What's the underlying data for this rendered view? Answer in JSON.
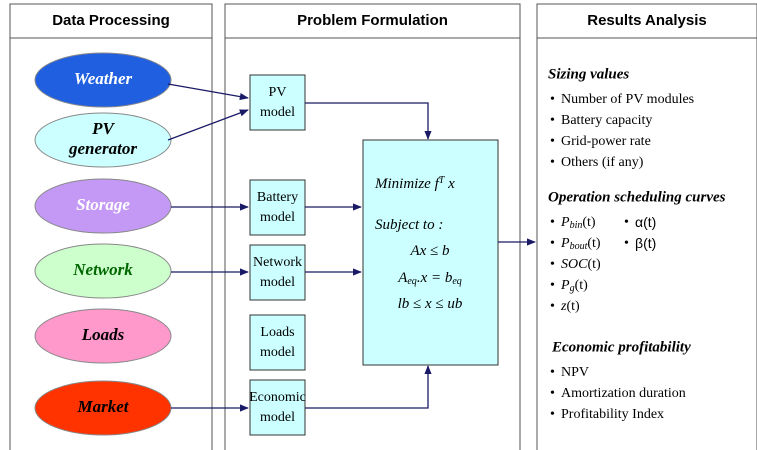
{
  "panels": [
    {
      "title": "Data Processing"
    },
    {
      "title": "Problem Formulation"
    },
    {
      "title": "Results Analysis"
    }
  ],
  "sources": [
    {
      "lines": [
        "Weather"
      ],
      "color": "#1f5fe0",
      "text_color": "#ffffff"
    },
    {
      "lines": [
        "PV",
        "generator"
      ],
      "color": "#ccffff",
      "text_color": "#000000"
    },
    {
      "lines": [
        "Storage"
      ],
      "color": "#c399f5",
      "text_color": "#ffffff"
    },
    {
      "lines": [
        "Network"
      ],
      "color": "#ccffcc",
      "text_color": "#006600"
    },
    {
      "lines": [
        "Loads"
      ],
      "color": "#ff99cc",
      "text_color": "#000000"
    },
    {
      "lines": [
        "Market"
      ],
      "color": "#ff3300",
      "text_color": "#000000"
    }
  ],
  "models": [
    {
      "lines": [
        "PV",
        "model"
      ]
    },
    {
      "lines": [
        "Battery",
        "model"
      ]
    },
    {
      "lines": [
        "Network",
        "model"
      ]
    },
    {
      "lines": [
        "Loads",
        "model"
      ]
    },
    {
      "lines": [
        "Economic",
        "model"
      ]
    }
  ],
  "optimization": {
    "objective": [
      {
        "text": "Minimize f"
      },
      {
        "text": "T",
        "style": "sup"
      },
      {
        "text": " x"
      }
    ],
    "subject": [
      {
        "text": "Subject to :"
      }
    ],
    "constraints": [
      [
        {
          "text": "Ax ≤ b"
        }
      ],
      [
        {
          "text": "A"
        },
        {
          "text": "eq",
          "style": "sub"
        },
        {
          "text": ".x = b"
        },
        {
          "text": "eq",
          "style": "sub"
        }
      ],
      [
        {
          "text": "lb ≤ x ≤ ub"
        }
      ]
    ]
  },
  "results": {
    "bullet": "•",
    "sections": [
      {
        "heading": "Sizing values",
        "items": [
          [
            {
              "text": "Number of PV modules"
            }
          ],
          [
            {
              "text": "Battery capacity"
            }
          ],
          [
            {
              "text": "Grid-power rate"
            }
          ],
          [
            {
              "text": "Others (if any)"
            }
          ]
        ],
        "items2": []
      },
      {
        "heading": "Operation scheduling curves",
        "items": [
          [
            {
              "text": "P",
              "style": "it"
            },
            {
              "text": "bin",
              "style": "itsub"
            },
            {
              "text": "(t)"
            }
          ],
          [
            {
              "text": "P",
              "style": "it"
            },
            {
              "text": "bout",
              "style": "itsub"
            },
            {
              "text": "(t)"
            }
          ],
          [
            {
              "text": "SOC",
              "style": "it"
            },
            {
              "text": "(t)"
            }
          ],
          [
            {
              "text": "P",
              "style": "it"
            },
            {
              "text": "g",
              "style": "itsub"
            },
            {
              "text": "(t)"
            }
          ],
          [
            {
              "text": "z",
              "style": "it"
            },
            {
              "text": "(t)"
            }
          ]
        ],
        "items2": [
          [
            {
              "text": "α",
              "style": "gr"
            },
            {
              "text": "(t)",
              "style": "gr"
            }
          ],
          [
            {
              "text": "β",
              "style": "gr"
            },
            {
              "text": "(t)",
              "style": "gr"
            }
          ]
        ]
      },
      {
        "heading": "Economic profitability",
        "items": [
          [
            {
              "text": "NPV"
            }
          ],
          [
            {
              "text": "Amortization duration"
            }
          ],
          [
            {
              "text": "Profitability Index"
            }
          ]
        ],
        "items2": []
      }
    ]
  }
}
